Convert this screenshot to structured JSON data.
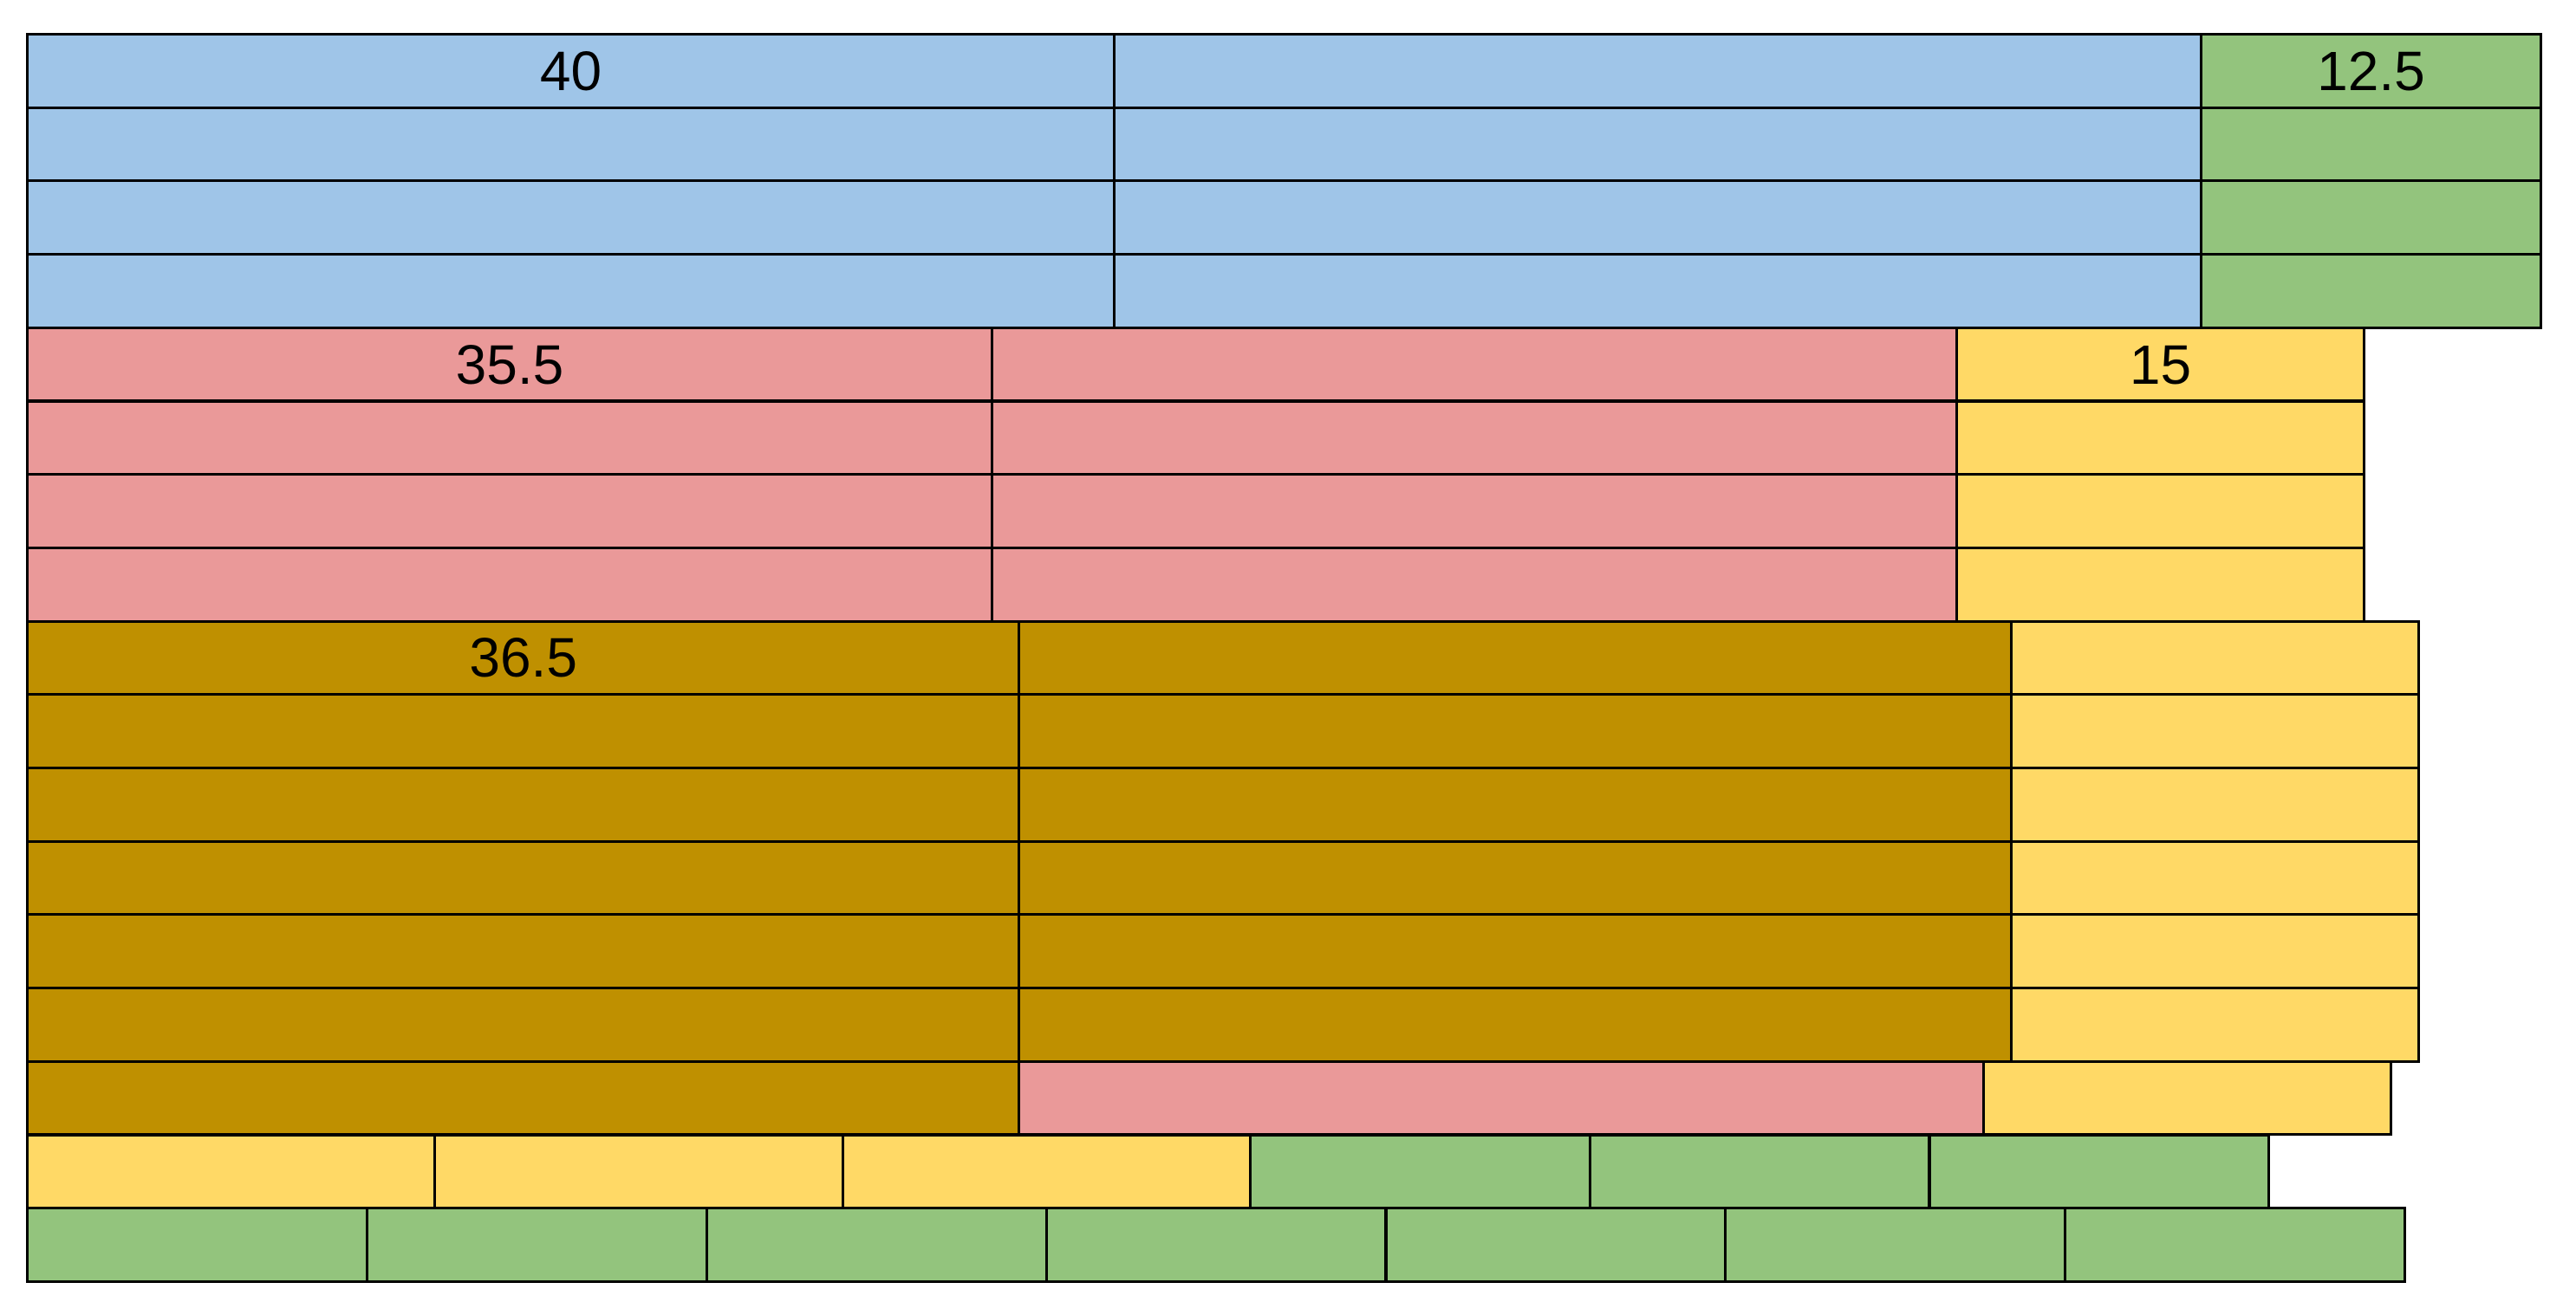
{
  "colors": {
    "blue": "#9fc5e8",
    "green": "#93c47d",
    "pink": "#ea9999",
    "yellow": "#ffd966",
    "gold": "#bf9000",
    "border": "#000000"
  },
  "labels": {
    "blue_block": "40",
    "green_block": "12.5",
    "pink_block": "35.5",
    "yellow_block": "15",
    "gold_block": "36.5"
  },
  "rows": [
    [
      {
        "color": "blue",
        "label": "blue_block",
        "span": 40
      },
      {
        "color": "blue",
        "span": 40
      },
      {
        "color": "green",
        "label": "green_block",
        "span": 12.5
      }
    ],
    [
      {
        "color": "blue",
        "span": 40
      },
      {
        "color": "blue",
        "span": 40
      },
      {
        "color": "green",
        "span": 12.5
      }
    ],
    [
      {
        "color": "blue",
        "span": 40
      },
      {
        "color": "blue",
        "span": 40
      },
      {
        "color": "green",
        "span": 12.5
      }
    ],
    [
      {
        "color": "blue",
        "span": 40
      },
      {
        "color": "blue",
        "span": 40
      },
      {
        "color": "green",
        "span": 12.5
      }
    ],
    [
      {
        "color": "pink",
        "label": "pink_block",
        "span": 35.5
      },
      {
        "color": "pink",
        "span": 35.5
      },
      {
        "color": "yellow",
        "label": "yellow_block",
        "span": 15
      }
    ],
    [
      {
        "color": "pink",
        "span": 35.5
      },
      {
        "color": "pink",
        "span": 35.5
      },
      {
        "color": "yellow",
        "span": 15
      }
    ],
    [
      {
        "color": "pink",
        "span": 35.5
      },
      {
        "color": "pink",
        "span": 35.5
      },
      {
        "color": "yellow",
        "span": 15
      }
    ],
    [
      {
        "color": "pink",
        "span": 35.5
      },
      {
        "color": "pink",
        "span": 35.5
      },
      {
        "color": "yellow",
        "span": 15
      }
    ],
    [
      {
        "color": "gold",
        "label": "gold_block",
        "span": 36.5
      },
      {
        "color": "gold",
        "span": 36.5
      },
      {
        "color": "yellow",
        "span": 15
      }
    ],
    [
      {
        "color": "gold",
        "span": 36.5
      },
      {
        "color": "gold",
        "span": 36.5
      },
      {
        "color": "yellow",
        "span": 15
      }
    ],
    [
      {
        "color": "gold",
        "span": 36.5
      },
      {
        "color": "gold",
        "span": 36.5
      },
      {
        "color": "yellow",
        "span": 15
      }
    ],
    [
      {
        "color": "gold",
        "span": 36.5
      },
      {
        "color": "gold",
        "span": 36.5
      },
      {
        "color": "yellow",
        "span": 15
      }
    ],
    [
      {
        "color": "gold",
        "span": 36.5
      },
      {
        "color": "gold",
        "span": 36.5
      },
      {
        "color": "yellow",
        "span": 15
      }
    ],
    [
      {
        "color": "gold",
        "span": 36.5
      },
      {
        "color": "gold",
        "span": 36.5
      },
      {
        "color": "yellow",
        "span": 15
      }
    ],
    [
      {
        "color": "gold",
        "span": 36.5
      },
      {
        "color": "pink",
        "span": 35.5
      },
      {
        "color": "yellow",
        "span": 15
      }
    ],
    [
      {
        "color": "yellow",
        "span": 15
      },
      {
        "color": "yellow",
        "span": 15
      },
      {
        "color": "yellow",
        "span": 15
      },
      {
        "color": "green",
        "span": 12.5
      },
      {
        "color": "green",
        "span": 12.5
      },
      {
        "color": "green",
        "span": 12.5
      }
    ],
    [
      {
        "color": "green",
        "span": 12.5
      },
      {
        "color": "green",
        "span": 12.5
      },
      {
        "color": "green",
        "span": 12.5
      },
      {
        "color": "green",
        "span": 12.5
      },
      {
        "color": "green",
        "span": 12.5
      },
      {
        "color": "green",
        "span": 12.5
      },
      {
        "color": "green",
        "span": 12.5
      }
    ]
  ]
}
